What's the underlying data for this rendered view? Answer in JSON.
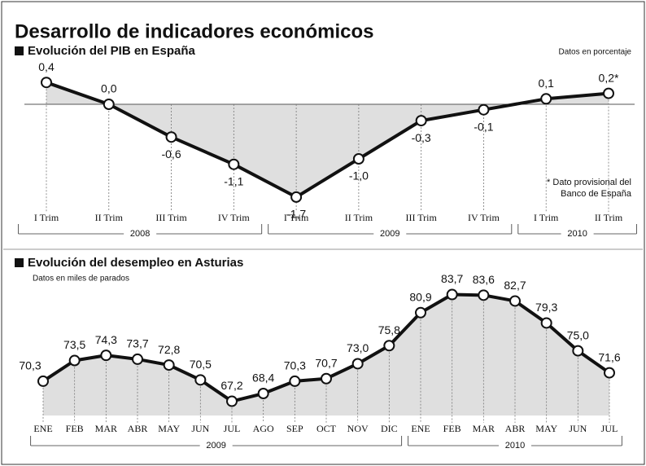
{
  "title": "Desarrollo de indicadores económicos",
  "chart_data": [
    {
      "type": "line",
      "title": "Evolución del PIB en España",
      "subtitle": "Datos en porcentaje",
      "categories": [
        "I Trim",
        "II Trim",
        "III Trim",
        "IV Trim",
        "I Trim",
        "II Trim",
        "III Trim",
        "IV Trim",
        "I Trim",
        "II Trim"
      ],
      "values": [
        0.4,
        0.0,
        -0.6,
        -1.1,
        -1.7,
        -1.0,
        -0.3,
        -0.1,
        0.1,
        0.2
      ],
      "value_labels": [
        "0,4",
        "0,0",
        "-0,6",
        "-1,1",
        "-1,7",
        "-1,0",
        "-0,3",
        "-0,1",
        "0,1",
        "0,2*"
      ],
      "groups": [
        "2008",
        "2009",
        "2010"
      ],
      "annotation": [
        "* Dato provisional del",
        "Banco de España"
      ],
      "ylim": [
        -1.8,
        0.5
      ],
      "color": "#111111",
      "fill": "#d4d4d4"
    },
    {
      "type": "line",
      "title": "Evolución del desempleo en Asturias",
      "subtitle": "Datos en miles de parados",
      "categories": [
        "ENE",
        "FEB",
        "MAR",
        "ABR",
        "MAY",
        "JUN",
        "JUL",
        "AGO",
        "SEP",
        "OCT",
        "NOV",
        "DIC",
        "ENE",
        "FEB",
        "MAR",
        "ABR",
        "MAY",
        "JUN",
        "JUL"
      ],
      "values": [
        70.3,
        73.5,
        74.3,
        73.7,
        72.8,
        70.5,
        67.2,
        68.4,
        70.3,
        70.7,
        73.0,
        75.8,
        80.9,
        83.7,
        83.6,
        82.7,
        79.3,
        75.0,
        71.6
      ],
      "value_labels": [
        "70,3",
        "73,5",
        "74,3",
        "73,7",
        "72,8",
        "70,5",
        "67,2",
        "68,4",
        "70,3",
        "70,7",
        "73,0",
        "75,8",
        "80,9",
        "83,7",
        "83,6",
        "82,7",
        "79,3",
        "75,0",
        "71,6"
      ],
      "groups": [
        "2009",
        "2010"
      ],
      "ylim": [
        65,
        86.5
      ],
      "color": "#111111",
      "fill": "#d4d4d4"
    }
  ]
}
